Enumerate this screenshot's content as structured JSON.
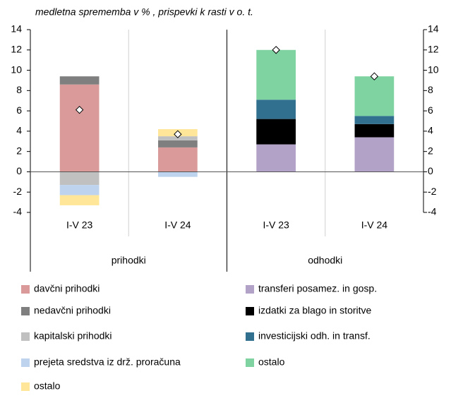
{
  "chart_data": {
    "type": "stacked-bar",
    "title": "medletna sprememba v % , prispevki k rasti v o. t.",
    "categories": [
      "I-V 23",
      "I-V 24",
      "I-V 23",
      "I-V 24"
    ],
    "groups": [
      {
        "label": "prihodki",
        "span": 2
      },
      {
        "label": "odhodki",
        "span": 2
      }
    ],
    "series": [
      {
        "name": "davčni prihodki",
        "color": "#d99a99",
        "values": [
          8.6,
          2.4,
          null,
          null
        ]
      },
      {
        "name": "nedavčni prihodki",
        "color": "#7f7f7f",
        "values": [
          0.8,
          0.7,
          null,
          null
        ]
      },
      {
        "name": "kapitalski prihodki",
        "color": "#c0c0c0",
        "values": [
          -1.3,
          0.4,
          null,
          null
        ]
      },
      {
        "name": "prejeta sredstva iz drž. proračuna",
        "color": "#bdd3ee",
        "values": [
          -1.0,
          -0.5,
          null,
          null
        ]
      },
      {
        "name": "ostalo",
        "color": "#ffe699",
        "values": [
          -1.0,
          0.7,
          null,
          null
        ]
      },
      {
        "name": "transferi posamez. in gosp.",
        "color": "#b3a2c7",
        "values": [
          null,
          null,
          2.7,
          3.4
        ]
      },
      {
        "name": "izdatki za blago in storitve",
        "color": "#000000",
        "values": [
          null,
          null,
          2.5,
          1.3
        ]
      },
      {
        "name": "investicijski odh. in transf.",
        "color": "#31708f",
        "values": [
          null,
          null,
          1.9,
          0.8
        ]
      },
      {
        "name": "ostalo",
        "color": "#7ed3a0",
        "values": [
          null,
          null,
          4.9,
          3.9
        ]
      }
    ],
    "totals": [
      6.1,
      3.7,
      12.0,
      9.4
    ],
    "ylim": [
      -4,
      14
    ],
    "yticks": [
      -4,
      -2,
      0,
      2,
      4,
      6,
      8,
      10,
      12,
      14
    ]
  }
}
